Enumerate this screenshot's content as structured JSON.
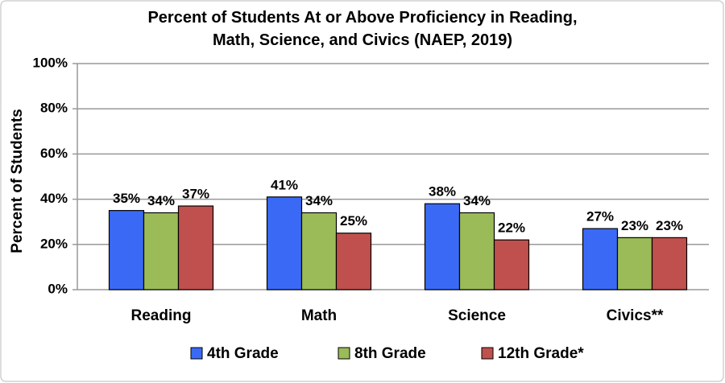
{
  "chart_data": {
    "type": "bar",
    "title": "Percent of Students At or Above Proficiency in Reading, Math, Science, and Civics (NAEP, 2019)",
    "y_label": "Percent of Students",
    "categories": [
      "Reading",
      "Math",
      "Science",
      "Civics**"
    ],
    "series": [
      {
        "name": "4th Grade",
        "color": "#3a6af5",
        "values": [
          35,
          41,
          38,
          27
        ],
        "value_labels": [
          "35%",
          "41%",
          "38%",
          "27%"
        ]
      },
      {
        "name": "8th Grade",
        "color": "#9bbb59",
        "values": [
          34,
          34,
          34,
          23
        ],
        "value_labels": [
          "34%",
          "34%",
          "34%",
          "23%"
        ]
      },
      {
        "name": "12th Grade*",
        "color": "#c0504d",
        "values": [
          37,
          25,
          22,
          23
        ],
        "value_labels": [
          "37%",
          "25%",
          "22%",
          "23%"
        ]
      }
    ],
    "ylim": [
      0,
      100
    ],
    "yticks": [
      {
        "value": 0,
        "label": "0%"
      },
      {
        "value": 20,
        "label": "20%"
      },
      {
        "value": 40,
        "label": "40%"
      },
      {
        "value": 60,
        "label": "60%"
      },
      {
        "value": 80,
        "label": "80%"
      },
      {
        "value": 100,
        "label": "100%"
      }
    ],
    "grid": true,
    "legend": "bottom"
  }
}
